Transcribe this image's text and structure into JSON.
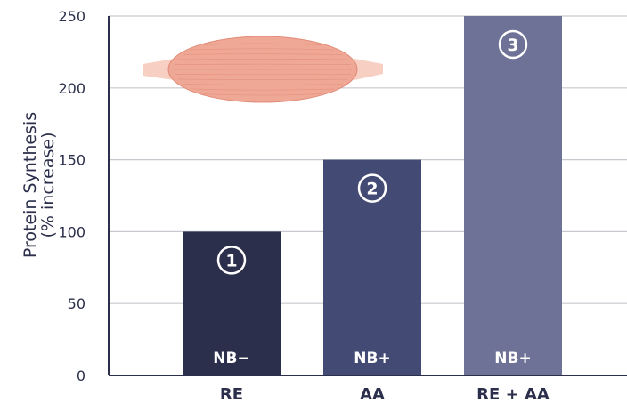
{
  "chart_data": {
    "type": "bar",
    "categories": [
      "RE",
      "AA",
      "RE + AA"
    ],
    "values": [
      100,
      150,
      250
    ],
    "bar_labels": [
      "NB−",
      "NB+",
      "NB+"
    ],
    "bar_markers": [
      "1",
      "2",
      "3"
    ],
    "bar_colors": [
      "#2b2f4b",
      "#434a74",
      "#6d7296"
    ],
    "ylabel_line1": "Protein Synthesis",
    "ylabel_line2": "(% increase)",
    "ylim": [
      0,
      250
    ],
    "yticks": [
      0,
      50,
      100,
      150,
      200,
      250
    ],
    "grid": true,
    "colors": {
      "axis_text": "#2b2f4b",
      "grid": "#c8c9cf",
      "muscle_fill": "#f0a896",
      "muscle_stroke": "#e08c78",
      "tendon": "#f7cfc3"
    }
  }
}
